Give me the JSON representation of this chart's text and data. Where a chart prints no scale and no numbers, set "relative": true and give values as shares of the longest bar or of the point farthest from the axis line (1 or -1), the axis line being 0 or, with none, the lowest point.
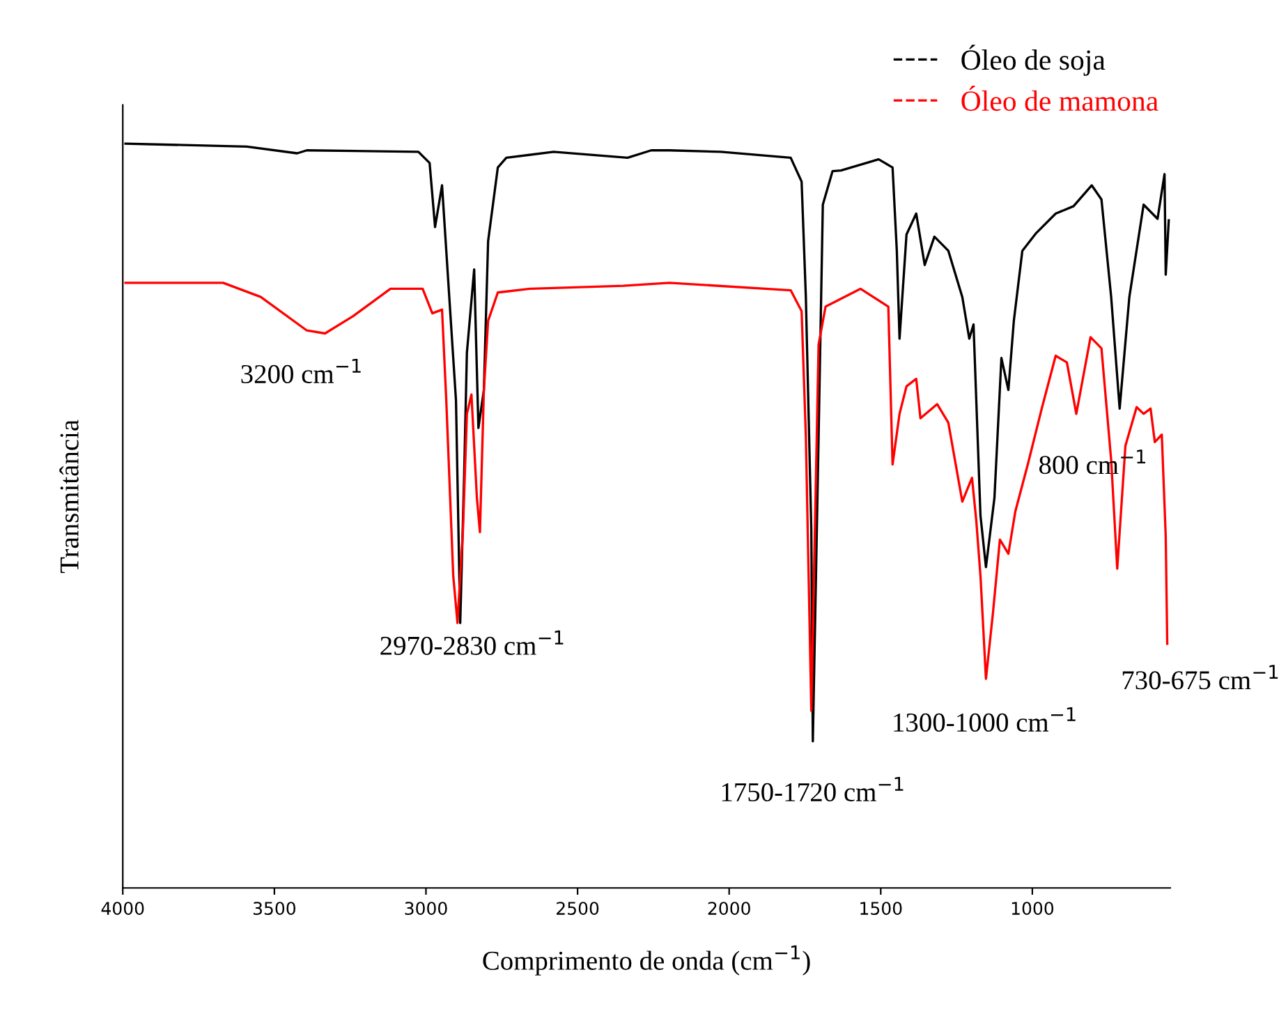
{
  "chart_data": {
    "type": "line",
    "relative": true,
    "xlabel": "Comprimento de onda (cm$^{−1}$)",
    "ylabel": "Transmitância",
    "xlim": [
      4000,
      545
    ],
    "xticks": [
      4000,
      3500,
      3000,
      2500,
      2000,
      1500,
      1000
    ],
    "legend": "top right",
    "grid": false,
    "marker": "none",
    "line_style": "solid",
    "series": [
      {
        "name": "Óleo de soja",
        "color": "#000000",
        "x": [
          3991,
          3591,
          3425,
          3393,
          3025,
          2988,
          2970,
          2947,
          2933,
          2901,
          2887,
          2874,
          2865,
          2841,
          2827,
          2809,
          2795,
          2763,
          2735,
          2579,
          2335,
          2257,
          2197,
          2027,
          1797,
          1761,
          1747,
          1729,
          1724,
          1705,
          1691,
          1659,
          1631,
          1507,
          1461,
          1447,
          1438,
          1415,
          1383,
          1355,
          1323,
          1277,
          1231,
          1208,
          1194,
          1171,
          1153,
          1125,
          1102,
          1079,
          1061,
          1033,
          987,
          923,
          864,
          804,
          772,
          740,
          712,
          680,
          633,
          587,
          564,
          560,
          550
        ],
        "values": [
          1.0,
          0.996,
          0.987,
          0.991,
          0.989,
          0.974,
          0.888,
          0.944,
          0.856,
          0.655,
          0.356,
          0.556,
          0.719,
          0.831,
          0.618,
          0.669,
          0.869,
          0.968,
          0.981,
          0.989,
          0.981,
          0.991,
          0.991,
          0.989,
          0.981,
          0.949,
          0.794,
          0.481,
          0.197,
          0.607,
          0.918,
          0.963,
          0.964,
          0.979,
          0.968,
          0.856,
          0.738,
          0.878,
          0.906,
          0.837,
          0.875,
          0.856,
          0.794,
          0.738,
          0.757,
          0.5,
          0.431,
          0.524,
          0.712,
          0.669,
          0.762,
          0.856,
          0.88,
          0.906,
          0.916,
          0.944,
          0.925,
          0.794,
          0.644,
          0.794,
          0.918,
          0.899,
          0.959,
          0.824,
          0.897
        ]
      },
      {
        "name": "Óleo de mamona",
        "color": "#ff0000",
        "x": [
          3991,
          3669,
          3545,
          3393,
          3333,
          3241,
          3117,
          3011,
          2979,
          2947,
          2933,
          2910,
          2896,
          2878,
          2865,
          2850,
          2832,
          2822,
          2809,
          2795,
          2763,
          2657,
          2349,
          2197,
          1797,
          1761,
          1747,
          1729,
          1705,
          1682,
          1567,
          1475,
          1461,
          1438,
          1415,
          1383,
          1369,
          1314,
          1277,
          1231,
          1199,
          1185,
          1171,
          1153,
          1130,
          1107,
          1079,
          1056,
          1015,
          969,
          923,
          886,
          855,
          808,
          772,
          740,
          720,
          693,
          656,
          633,
          610,
          596,
          573,
          560,
          555
        ],
        "values": [
          0.813,
          0.813,
          0.794,
          0.749,
          0.745,
          0.768,
          0.805,
          0.805,
          0.772,
          0.777,
          0.655,
          0.419,
          0.356,
          0.481,
          0.637,
          0.663,
          0.524,
          0.478,
          0.669,
          0.762,
          0.8,
          0.805,
          0.809,
          0.813,
          0.803,
          0.775,
          0.607,
          0.238,
          0.73,
          0.781,
          0.805,
          0.781,
          0.569,
          0.637,
          0.674,
          0.684,
          0.631,
          0.65,
          0.625,
          0.519,
          0.551,
          0.494,
          0.419,
          0.281,
          0.369,
          0.468,
          0.449,
          0.506,
          0.569,
          0.644,
          0.715,
          0.706,
          0.637,
          0.74,
          0.725,
          0.575,
          0.429,
          0.594,
          0.646,
          0.637,
          0.644,
          0.599,
          0.609,
          0.472,
          0.328
        ]
      }
    ],
    "annotations": [
      "3200 cm$^{−1}$",
      "2970-2830 cm$^{−1}$",
      "1750-1720 cm$^{−1}$",
      "1300-1000 cm$^{−1}$",
      "800 cm$^{−1}$",
      "730-675 cm$^{−1}$"
    ]
  }
}
